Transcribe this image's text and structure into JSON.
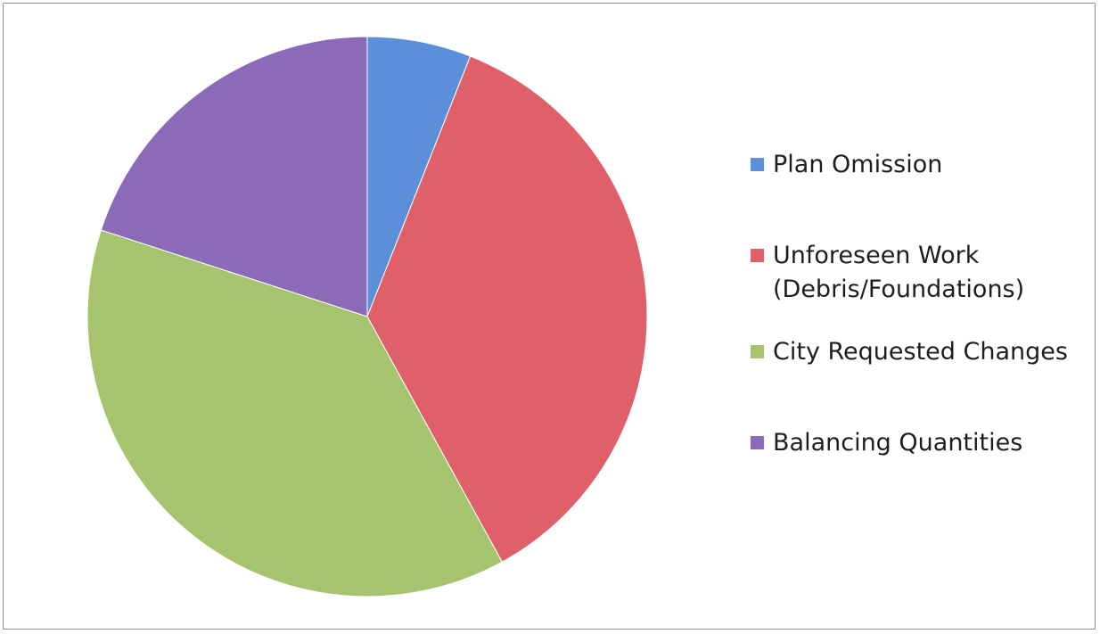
{
  "chart_data": {
    "type": "pie",
    "title": "",
    "start_angle_deg": 0,
    "direction": "clockwise",
    "slices": [
      {
        "label": "Plan Omission",
        "value": 6,
        "color": "#5b8fd9"
      },
      {
        "label": "Unforeseen Work\n(Debris/Foundations)",
        "value": 36,
        "color": "#e0606a"
      },
      {
        "label": "City Requested Changes",
        "value": 38,
        "color": "#a6c46e"
      },
      {
        "label": "Balancing Quantities",
        "value": 20,
        "color": "#8b6bb8"
      }
    ],
    "legend_position": "right"
  }
}
